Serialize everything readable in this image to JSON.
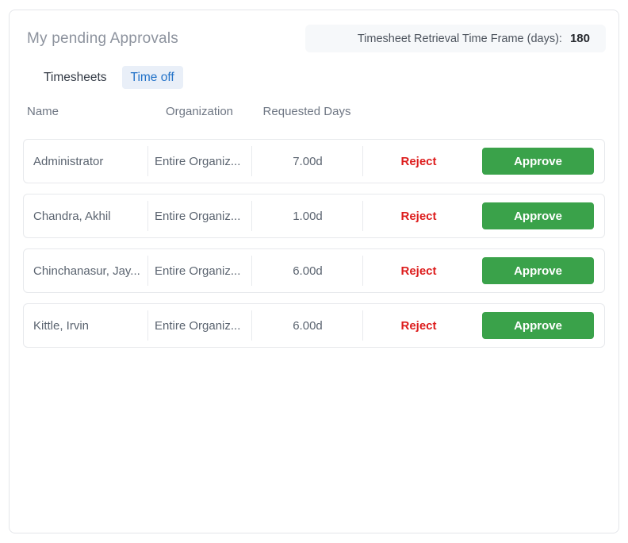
{
  "card": {
    "title": "My pending Approvals",
    "retrieval": {
      "label": "Timesheet Retrieval Time Frame (days):",
      "value": "180"
    },
    "tabs": [
      {
        "label": "Timesheets",
        "active": false
      },
      {
        "label": "Time off",
        "active": true
      }
    ],
    "columns": [
      "Name",
      "Organization",
      "Requested Days"
    ],
    "actions": {
      "reject_label": "Reject",
      "approve_label": "Approve"
    },
    "rows": [
      {
        "name": "Administrator",
        "organization": "Entire Organiz...",
        "requested_days": "7.00d"
      },
      {
        "name": "Chandra, Akhil",
        "organization": "Entire Organiz...",
        "requested_days": "1.00d"
      },
      {
        "name": "Chinchanasur, Jay...",
        "organization": "Entire Organiz...",
        "requested_days": "6.00d"
      },
      {
        "name": "Kittle, Irvin",
        "organization": "Entire Organiz...",
        "requested_days": "6.00d"
      }
    ],
    "colors": {
      "approve_green": "#3aa24a",
      "reject_red": "#dd1c1c",
      "tab_active_blue": "#2272c8",
      "tab_active_bg": "#e9eff8",
      "bar_bg": "#f6f8fa"
    }
  }
}
